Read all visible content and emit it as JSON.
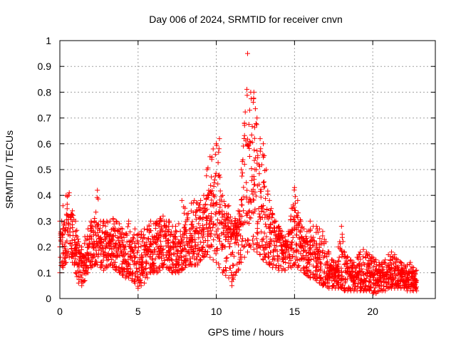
{
  "chart_data": {
    "type": "scatter",
    "title": "Day 006 of 2024, SRMTID for receiver cnvn",
    "xlabel": "GPS time / hours",
    "ylabel": "SRMTID / TECUs",
    "xlim": [
      0,
      24
    ],
    "ylim": [
      0,
      1
    ],
    "x_ticks": [
      0,
      5,
      10,
      15,
      20
    ],
    "x_tick_labels": [
      "0",
      "5",
      "10",
      "15",
      "20"
    ],
    "y_ticks": [
      0,
      0.1,
      0.2,
      0.3,
      0.4,
      0.5,
      0.6,
      0.7,
      0.8,
      0.9,
      1
    ],
    "y_tick_labels": [
      "0",
      "0.1",
      "0.2",
      "0.3",
      "0.4",
      "0.5",
      "0.6",
      "0.7",
      "0.8",
      "0.9",
      "1"
    ],
    "grid": true,
    "marker": "+",
    "color": "#ff0000",
    "series": [
      {
        "name": "SRMTID",
        "x": [
          0.0,
          0.2,
          0.4,
          0.6,
          0.8,
          1.0,
          1.2,
          1.4,
          1.6,
          1.8,
          2.0,
          2.2,
          2.4,
          2.6,
          2.8,
          3.0,
          3.2,
          3.4,
          3.6,
          3.8,
          4.0,
          4.2,
          4.4,
          4.6,
          4.8,
          5.0,
          5.2,
          5.4,
          5.6,
          5.8,
          6.0,
          6.2,
          6.4,
          6.6,
          6.8,
          7.0,
          7.2,
          7.4,
          7.6,
          7.8,
          8.0,
          8.2,
          8.4,
          8.6,
          8.8,
          9.0,
          9.2,
          9.4,
          9.6,
          9.8,
          10.0,
          10.2,
          10.4,
          10.6,
          10.8,
          11.0,
          11.2,
          11.4,
          11.6,
          11.8,
          12.0,
          12.2,
          12.4,
          12.6,
          12.8,
          13.0,
          13.2,
          13.4,
          13.6,
          13.8,
          14.0,
          14.2,
          14.4,
          14.6,
          14.8,
          15.0,
          15.2,
          15.4,
          15.6,
          15.8,
          16.0,
          16.2,
          16.4,
          16.6,
          16.8,
          17.0,
          17.2,
          17.4,
          17.6,
          17.8,
          18.0,
          18.2,
          18.4,
          18.6,
          18.8,
          19.0,
          19.2,
          19.4,
          19.6,
          19.8,
          20.0,
          20.2,
          20.4,
          20.6,
          20.8,
          21.0,
          21.2,
          21.4,
          21.6,
          21.8,
          22.0,
          22.2,
          22.4,
          22.6,
          22.8
        ],
        "median": [
          0.18,
          0.2,
          0.22,
          0.24,
          0.22,
          0.18,
          0.15,
          0.13,
          0.14,
          0.17,
          0.19,
          0.21,
          0.22,
          0.21,
          0.2,
          0.2,
          0.21,
          0.22,
          0.2,
          0.18,
          0.17,
          0.16,
          0.15,
          0.14,
          0.14,
          0.13,
          0.13,
          0.14,
          0.16,
          0.18,
          0.18,
          0.19,
          0.2,
          0.21,
          0.21,
          0.2,
          0.19,
          0.18,
          0.18,
          0.19,
          0.2,
          0.21,
          0.22,
          0.22,
          0.22,
          0.23,
          0.25,
          0.27,
          0.28,
          0.3,
          0.32,
          0.3,
          0.28,
          0.26,
          0.24,
          0.22,
          0.22,
          0.24,
          0.28,
          0.32,
          0.36,
          0.4,
          0.42,
          0.4,
          0.35,
          0.3,
          0.27,
          0.25,
          0.23,
          0.22,
          0.21,
          0.2,
          0.2,
          0.21,
          0.22,
          0.23,
          0.22,
          0.2,
          0.18,
          0.17,
          0.16,
          0.15,
          0.13,
          0.12,
          0.11,
          0.1,
          0.09,
          0.09,
          0.09,
          0.09,
          0.09,
          0.09,
          0.09,
          0.08,
          0.08,
          0.08,
          0.08,
          0.08,
          0.08,
          0.08,
          0.08,
          0.08,
          0.08,
          0.08,
          0.08,
          0.09,
          0.09,
          0.09,
          0.09,
          0.09,
          0.09,
          0.08,
          0.07,
          0.07,
          0.07
        ],
        "peak": [
          0.3,
          0.36,
          0.4,
          0.41,
          0.34,
          0.3,
          0.22,
          0.2,
          0.24,
          0.27,
          0.3,
          0.3,
          0.42,
          0.3,
          0.3,
          0.3,
          0.3,
          0.31,
          0.3,
          0.29,
          0.27,
          0.25,
          0.3,
          0.22,
          0.27,
          0.25,
          0.26,
          0.27,
          0.27,
          0.3,
          0.29,
          0.3,
          0.31,
          0.32,
          0.3,
          0.3,
          0.28,
          0.28,
          0.29,
          0.38,
          0.35,
          0.33,
          0.37,
          0.38,
          0.37,
          0.38,
          0.4,
          0.5,
          0.55,
          0.58,
          0.6,
          0.62,
          0.4,
          0.36,
          0.36,
          0.3,
          0.31,
          0.34,
          0.5,
          0.68,
          0.95,
          0.8,
          0.8,
          0.7,
          0.62,
          0.6,
          0.5,
          0.38,
          0.33,
          0.3,
          0.28,
          0.26,
          0.24,
          0.26,
          0.35,
          0.43,
          0.38,
          0.3,
          0.27,
          0.26,
          0.3,
          0.28,
          0.28,
          0.27,
          0.26,
          0.22,
          0.18,
          0.15,
          0.14,
          0.2,
          0.28,
          0.18,
          0.16,
          0.15,
          0.14,
          0.16,
          0.18,
          0.19,
          0.18,
          0.17,
          0.16,
          0.15,
          0.14,
          0.14,
          0.15,
          0.17,
          0.18,
          0.17,
          0.15,
          0.14,
          0.13,
          0.13,
          0.14,
          0.12,
          0.11
        ],
        "low": [
          0.1,
          0.12,
          0.14,
          0.16,
          0.14,
          0.1,
          0.06,
          0.05,
          0.07,
          0.1,
          0.12,
          0.13,
          0.13,
          0.12,
          0.11,
          0.12,
          0.13,
          0.12,
          0.11,
          0.1,
          0.09,
          0.08,
          0.08,
          0.07,
          0.06,
          0.04,
          0.05,
          0.06,
          0.08,
          0.1,
          0.1,
          0.1,
          0.11,
          0.12,
          0.12,
          0.11,
          0.1,
          0.1,
          0.1,
          0.11,
          0.12,
          0.13,
          0.13,
          0.13,
          0.13,
          0.15,
          0.16,
          0.17,
          0.16,
          0.15,
          0.14,
          0.12,
          0.1,
          0.09,
          0.08,
          0.05,
          0.09,
          0.11,
          0.14,
          0.16,
          0.18,
          0.2,
          0.19,
          0.18,
          0.17,
          0.15,
          0.14,
          0.13,
          0.12,
          0.12,
          0.11,
          0.11,
          0.11,
          0.12,
          0.12,
          0.13,
          0.12,
          0.11,
          0.1,
          0.09,
          0.08,
          0.08,
          0.07,
          0.06,
          0.05,
          0.05,
          0.04,
          0.04,
          0.04,
          0.04,
          0.04,
          0.03,
          0.03,
          0.03,
          0.03,
          0.03,
          0.03,
          0.03,
          0.03,
          0.03,
          0.02,
          0.02,
          0.03,
          0.03,
          0.03,
          0.04,
          0.04,
          0.04,
          0.04,
          0.04,
          0.04,
          0.03,
          0.03,
          0.03,
          0.03
        ]
      }
    ]
  }
}
